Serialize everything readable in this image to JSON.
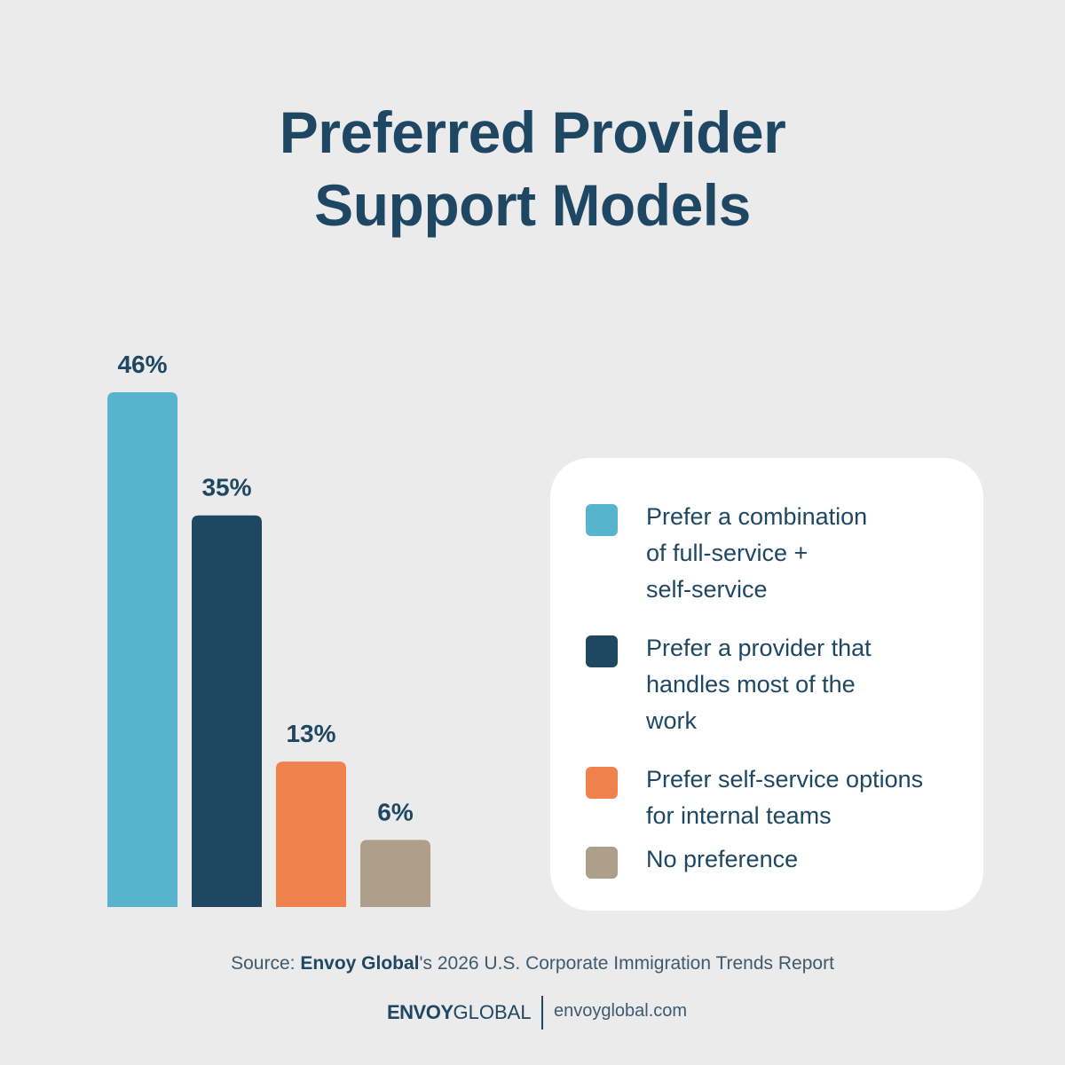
{
  "title_lines": [
    "Preferred Provider",
    "Support Models"
  ],
  "chart_data": {
    "type": "bar",
    "title": "Preferred Provider Support Models",
    "categories": [
      "Prefer a combination of full-service + self-service",
      "Prefer a provider that handles most of the work",
      "Prefer self-service options for internal teams",
      "No preference"
    ],
    "values": [
      46,
      35,
      13,
      6
    ],
    "value_labels": [
      "46%",
      "35%",
      "13%",
      "6%"
    ],
    "colors": [
      "#58b3cc",
      "#1f4761",
      "#ef814d",
      "#ad9f89"
    ],
    "ylim": [
      0,
      46
    ],
    "grid": false,
    "legend_position": "right"
  },
  "legend": {
    "items": [
      {
        "lines": [
          "Prefer a combination",
          "of full-service +",
          "self-service"
        ],
        "color": "#58b3cc"
      },
      {
        "lines": [
          "Prefer a provider that",
          "handles most of the",
          "work"
        ],
        "color": "#1f4761"
      },
      {
        "lines": [
          "Prefer self-service options",
          "for internal teams"
        ],
        "color": "#ef814d"
      },
      {
        "lines": [
          "No preference"
        ],
        "color": "#ad9f89"
      }
    ]
  },
  "source": {
    "prefix": "Source: ",
    "brand": "Envoy Global",
    "suffix": "'s 2026 U.S. Corporate Immigration Trends Report"
  },
  "footer": {
    "logo_bold": "ENVOY",
    "logo_light": "GLOBAL",
    "website": "envoyglobal.com"
  }
}
